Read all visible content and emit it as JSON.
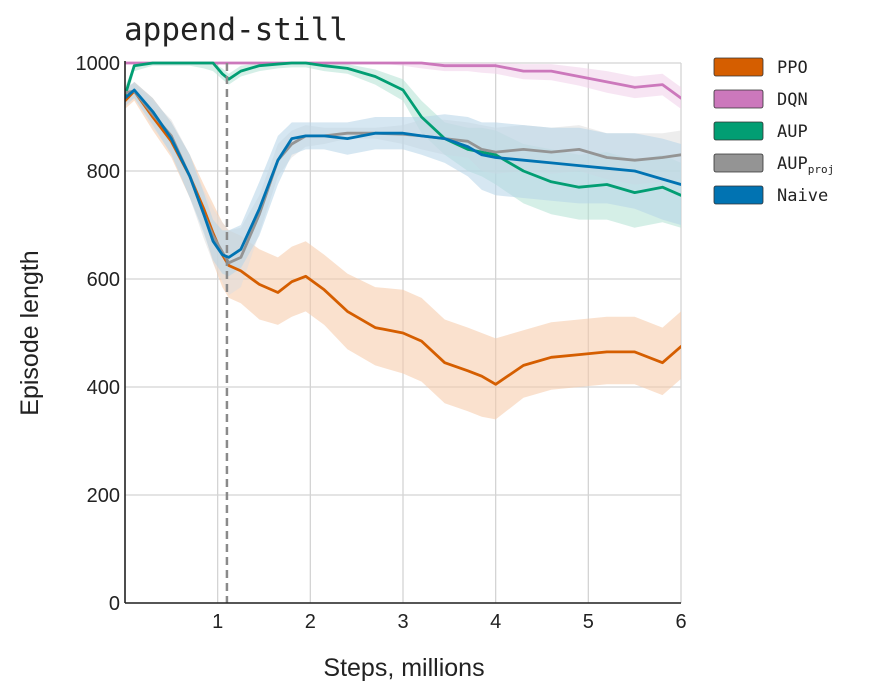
{
  "chart_data": {
    "type": "line",
    "title": "append-still",
    "xlabel": "Steps, millions",
    "ylabel": "Episode length",
    "xlim": [
      0,
      6
    ],
    "ylim": [
      0,
      1000
    ],
    "xticks": [
      1,
      2,
      3,
      4,
      5,
      6
    ],
    "yticks": [
      0,
      200,
      400,
      600,
      800,
      1000
    ],
    "grid": true,
    "legend_position": "right",
    "vline": {
      "x": 1.1,
      "style": "dashed",
      "color": "#8a8a8a"
    },
    "x": [
      0,
      0.1,
      0.3,
      0.5,
      0.7,
      0.85,
      0.95,
      1.05,
      1.12,
      1.25,
      1.45,
      1.65,
      1.8,
      1.95,
      2.15,
      2.4,
      2.7,
      3.0,
      3.2,
      3.45,
      3.7,
      3.85,
      4.0,
      4.3,
      4.6,
      4.9,
      5.2,
      5.5,
      5.8,
      6.0
    ],
    "series": [
      {
        "name": "PPO",
        "color": "#d55e00",
        "band_color": "#f5c9a6",
        "values": [
          930,
          948,
          900,
          855,
          790,
          730,
          685,
          645,
          625,
          615,
          590,
          575,
          595,
          605,
          580,
          540,
          510,
          500,
          485,
          445,
          430,
          420,
          405,
          440,
          455,
          460,
          465,
          465,
          445,
          475
        ],
        "band": [
          [
            915,
            945
          ],
          [
            930,
            965
          ],
          [
            875,
            935
          ],
          [
            825,
            890
          ],
          [
            750,
            830
          ],
          [
            690,
            775
          ],
          [
            630,
            740
          ],
          [
            585,
            705
          ],
          [
            565,
            690
          ],
          [
            555,
            680
          ],
          [
            525,
            655
          ],
          [
            515,
            640
          ],
          [
            530,
            660
          ],
          [
            540,
            670
          ],
          [
            515,
            645
          ],
          [
            470,
            610
          ],
          [
            440,
            585
          ],
          [
            425,
            580
          ],
          [
            410,
            565
          ],
          [
            370,
            525
          ],
          [
            355,
            510
          ],
          [
            345,
            500
          ],
          [
            340,
            490
          ],
          [
            380,
            505
          ],
          [
            395,
            520
          ],
          [
            400,
            525
          ],
          [
            405,
            530
          ],
          [
            405,
            530
          ],
          [
            385,
            510
          ],
          [
            415,
            540
          ]
        ]
      },
      {
        "name": "DQN",
        "color": "#cc78bc",
        "band_color": "#f0d0ea",
        "values": [
          1000,
          1000,
          1000,
          1000,
          1000,
          1000,
          1000,
          1000,
          1000,
          1000,
          1000,
          1000,
          1000,
          1000,
          1000,
          1000,
          1000,
          1000,
          1000,
          995,
          995,
          995,
          995,
          985,
          985,
          975,
          965,
          955,
          960,
          935
        ],
        "band": [
          [
            1000,
            1000
          ],
          [
            1000,
            1000
          ],
          [
            1000,
            1000
          ],
          [
            1000,
            1000
          ],
          [
            1000,
            1000
          ],
          [
            1000,
            1000
          ],
          [
            1000,
            1000
          ],
          [
            1000,
            1000
          ],
          [
            1000,
            1000
          ],
          [
            1000,
            1000
          ],
          [
            1000,
            1000
          ],
          [
            1000,
            1000
          ],
          [
            1000,
            1000
          ],
          [
            1000,
            1000
          ],
          [
            1000,
            1000
          ],
          [
            1000,
            1000
          ],
          [
            1000,
            1000
          ],
          [
            995,
            1000
          ],
          [
            990,
            1000
          ],
          [
            985,
            1000
          ],
          [
            985,
            1000
          ],
          [
            982,
            1000
          ],
          [
            980,
            1000
          ],
          [
            970,
            998
          ],
          [
            968,
            998
          ],
          [
            958,
            992
          ],
          [
            945,
            985
          ],
          [
            935,
            975
          ],
          [
            940,
            980
          ],
          [
            915,
            955
          ]
        ]
      },
      {
        "name": "AUP",
        "color": "#029e73",
        "band_color": "#b3e2d3",
        "values": [
          940,
          995,
          1000,
          1000,
          1000,
          1000,
          1000,
          980,
          970,
          985,
          995,
          998,
          1000,
          1000,
          995,
          990,
          975,
          950,
          900,
          860,
          840,
          835,
          830,
          800,
          780,
          770,
          775,
          760,
          770,
          755
        ],
        "band": [
          [
            925,
            955
          ],
          [
            985,
            1000
          ],
          [
            995,
            1000
          ],
          [
            995,
            1000
          ],
          [
            995,
            1000
          ],
          [
            990,
            1000
          ],
          [
            985,
            1000
          ],
          [
            970,
            990
          ],
          [
            960,
            980
          ],
          [
            975,
            995
          ],
          [
            985,
            1000
          ],
          [
            990,
            1000
          ],
          [
            992,
            1000
          ],
          [
            992,
            1000
          ],
          [
            985,
            1000
          ],
          [
            980,
            998
          ],
          [
            960,
            988
          ],
          [
            930,
            970
          ],
          [
            870,
            930
          ],
          [
            830,
            890
          ],
          [
            800,
            880
          ],
          [
            790,
            880
          ],
          [
            775,
            875
          ],
          [
            740,
            850
          ],
          [
            720,
            840
          ],
          [
            710,
            830
          ],
          [
            710,
            835
          ],
          [
            695,
            820
          ],
          [
            705,
            830
          ],
          [
            695,
            815
          ]
        ]
      },
      {
        "name": "AUP",
        "name_subscript": "proj",
        "color": "#949494",
        "band_color": "#dedede",
        "values": [
          945,
          948,
          905,
          865,
          790,
          720,
          680,
          650,
          630,
          640,
          720,
          820,
          850,
          865,
          865,
          870,
          870,
          868,
          865,
          860,
          855,
          840,
          835,
          840,
          835,
          840,
          825,
          820,
          825,
          830
        ],
        "band": [
          [
            930,
            960
          ],
          [
            935,
            962
          ],
          [
            880,
            930
          ],
          [
            835,
            895
          ],
          [
            750,
            830
          ],
          [
            675,
            765
          ],
          [
            630,
            730
          ],
          [
            595,
            705
          ],
          [
            570,
            690
          ],
          [
            585,
            695
          ],
          [
            685,
            755
          ],
          [
            790,
            850
          ],
          [
            825,
            875
          ],
          [
            845,
            885
          ],
          [
            850,
            880
          ],
          [
            860,
            880
          ],
          [
            860,
            880
          ],
          [
            850,
            885
          ],
          [
            840,
            895
          ],
          [
            830,
            895
          ],
          [
            825,
            890
          ],
          [
            800,
            885
          ],
          [
            795,
            880
          ],
          [
            800,
            885
          ],
          [
            795,
            880
          ],
          [
            800,
            885
          ],
          [
            785,
            870
          ],
          [
            775,
            870
          ],
          [
            780,
            870
          ],
          [
            785,
            875
          ]
        ]
      },
      {
        "name": "Naive",
        "color": "#0173b2",
        "band_color": "#b5d3e8",
        "values": [
          935,
          950,
          910,
          860,
          790,
          720,
          670,
          645,
          640,
          655,
          730,
          820,
          860,
          865,
          865,
          860,
          870,
          870,
          865,
          860,
          845,
          830,
          825,
          820,
          815,
          810,
          805,
          800,
          785,
          775
        ],
        "band": [
          [
            920,
            950
          ],
          [
            935,
            965
          ],
          [
            885,
            935
          ],
          [
            830,
            890
          ],
          [
            750,
            830
          ],
          [
            685,
            760
          ],
          [
            635,
            710
          ],
          [
            610,
            690
          ],
          [
            605,
            690
          ],
          [
            620,
            700
          ],
          [
            680,
            780
          ],
          [
            775,
            865
          ],
          [
            830,
            890
          ],
          [
            840,
            890
          ],
          [
            840,
            890
          ],
          [
            830,
            890
          ],
          [
            840,
            900
          ],
          [
            840,
            900
          ],
          [
            830,
            900
          ],
          [
            815,
            905
          ],
          [
            790,
            900
          ],
          [
            765,
            890
          ],
          [
            755,
            890
          ],
          [
            750,
            885
          ],
          [
            745,
            880
          ],
          [
            740,
            880
          ],
          [
            740,
            870
          ],
          [
            730,
            870
          ],
          [
            710,
            860
          ],
          [
            700,
            850
          ]
        ]
      }
    ]
  }
}
